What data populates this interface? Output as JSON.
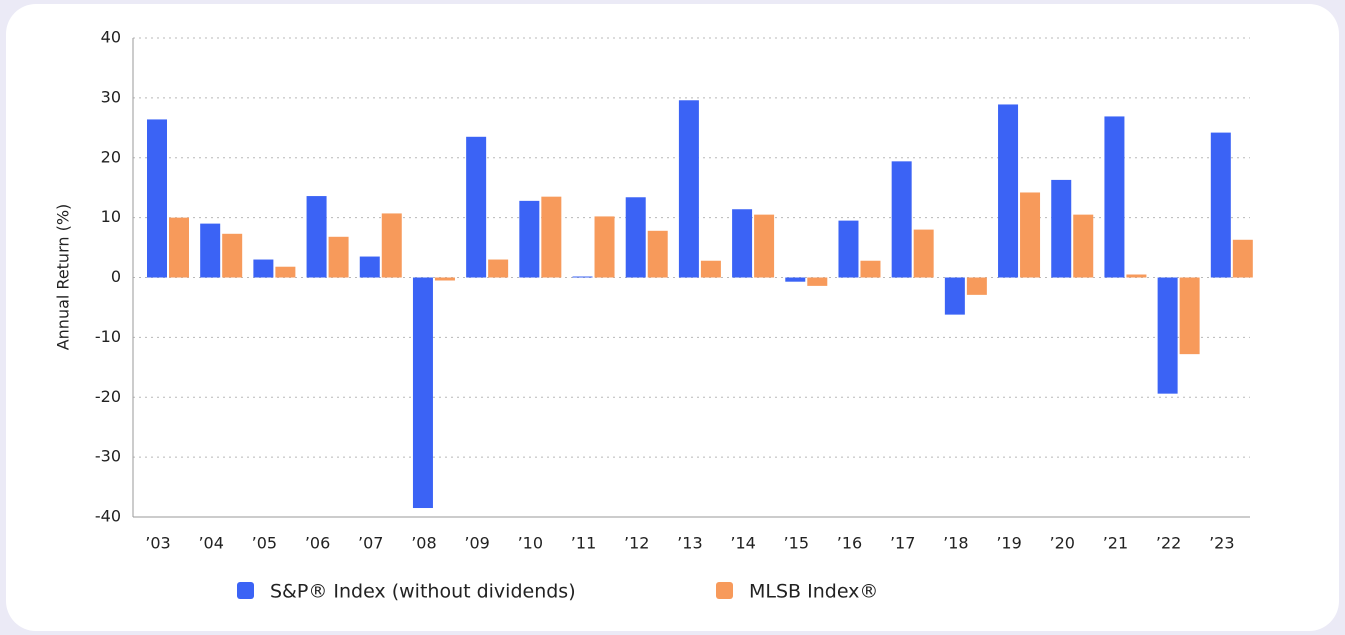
{
  "chart_data": {
    "type": "bar",
    "y_label": "Annual Return (%)",
    "categories": [
      "’03",
      "’04",
      "’05",
      "’06",
      "’07",
      "’08",
      "’09",
      "’10",
      "’11",
      "’12",
      "’13",
      "’14",
      "’15",
      "’16",
      "’17",
      "’18",
      "’19",
      "’20",
      "’21",
      "’22",
      "’23"
    ],
    "series": [
      {
        "name": "S&P® Index (without dividends)",
        "color": "#3b63f5",
        "values": [
          26.4,
          9.0,
          3.0,
          13.6,
          3.5,
          -38.5,
          23.5,
          12.8,
          0.0,
          13.4,
          29.6,
          11.4,
          -0.7,
          9.5,
          19.4,
          -6.2,
          28.9,
          16.3,
          26.9,
          -19.4,
          24.2
        ]
      },
      {
        "name": "MLSB Index®",
        "color": "#f79a5b",
        "values": [
          10.0,
          7.3,
          1.8,
          6.8,
          10.7,
          -0.5,
          3.0,
          13.5,
          10.2,
          7.8,
          2.8,
          10.5,
          -1.4,
          2.8,
          8.0,
          -2.9,
          14.2,
          10.5,
          0.5,
          -12.8,
          6.3
        ]
      }
    ],
    "ylim": [
      -40,
      40
    ],
    "yticks": [
      40,
      30,
      20,
      10,
      0,
      -10,
      -20,
      -30,
      -40
    ],
    "grid": true
  }
}
